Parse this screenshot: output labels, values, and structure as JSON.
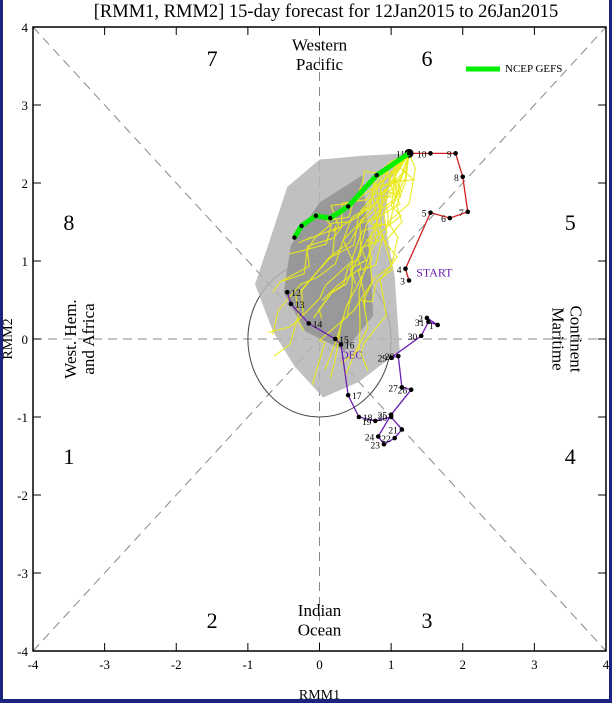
{
  "chart_data": {
    "type": "line",
    "title": "[RMM1, RMM2] 15-day forecast for 12Jan2015 to 26Jan2015",
    "xlabel": "RMM1",
    "ylabel": "RMM2",
    "xlim": [
      -4,
      4
    ],
    "ylim": [
      -4,
      4
    ],
    "xticks": [
      "-4",
      "-3",
      "-2",
      "-1",
      "0",
      "1",
      "2",
      "3",
      "4"
    ],
    "yticks": [
      "-4",
      "-3",
      "-2",
      "-1",
      "0",
      "1",
      "2",
      "3",
      "4"
    ],
    "grid": false,
    "legend": {
      "position": "top-right",
      "entries": [
        {
          "name": "NCEP GEFS",
          "color": "#00ee00"
        }
      ]
    },
    "phases": [
      "1",
      "2",
      "3",
      "4",
      "5",
      "6",
      "7",
      "8"
    ],
    "regions": {
      "top": [
        "Western",
        "Pacific"
      ],
      "bottom": [
        "Indian",
        "Ocean"
      ],
      "left": [
        "West. Hem.",
        "and Africa"
      ],
      "right": [
        "Maritime",
        "Continent"
      ]
    },
    "annotations": {
      "start": "START",
      "month": "DEC"
    },
    "series": [
      {
        "name": "observed-dec",
        "color": "#6a1fb0",
        "points": [
          {
            "label": "12",
            "x": -0.45,
            "y": 0.6
          },
          {
            "label": "13",
            "x": -0.4,
            "y": 0.45
          },
          {
            "label": "14",
            "x": -0.15,
            "y": 0.2
          },
          {
            "label": "15",
            "x": 0.22,
            "y": 0.0
          },
          {
            "label": "16",
            "x": 0.3,
            "y": -0.07
          },
          {
            "label": "17",
            "x": 0.4,
            "y": -0.72
          },
          {
            "label": "18",
            "x": 0.55,
            "y": -1.0
          },
          {
            "label": "19",
            "x": 0.78,
            "y": -1.05
          },
          {
            "label": "20",
            "x": 1.0,
            "y": -1.0
          },
          {
            "label": "21",
            "x": 1.15,
            "y": -1.16
          },
          {
            "label": "22",
            "x": 1.05,
            "y": -1.27
          },
          {
            "label": "23",
            "x": 0.9,
            "y": -1.35
          },
          {
            "label": "24",
            "x": 0.82,
            "y": -1.25
          },
          {
            "label": "25",
            "x": 1.0,
            "y": -0.97
          },
          {
            "label": "26",
            "x": 1.28,
            "y": -0.65
          },
          {
            "label": "27",
            "x": 1.15,
            "y": -0.62
          },
          {
            "label": "28",
            "x": 1.1,
            "y": -0.22
          },
          {
            "label": "29",
            "x": 1.0,
            "y": -0.24
          },
          {
            "label": "30",
            "x": 1.42,
            "y": 0.04
          },
          {
            "label": "31",
            "x": 1.52,
            "y": 0.22
          },
          {
            "label": "1",
            "x": 1.65,
            "y": 0.18
          },
          {
            "label": "2",
            "x": 1.5,
            "y": 0.27
          }
        ]
      },
      {
        "name": "observed-jan",
        "color": "#d02020",
        "points": [
          {
            "label": "3",
            "x": 1.25,
            "y": 0.75
          },
          {
            "label": "4",
            "x": 1.2,
            "y": 0.9
          },
          {
            "label": "5",
            "x": 1.55,
            "y": 1.62
          },
          {
            "label": "6",
            "x": 1.82,
            "y": 1.55
          },
          {
            "label": "7",
            "x": 2.07,
            "y": 1.63
          },
          {
            "label": "8",
            "x": 2.0,
            "y": 2.08
          },
          {
            "label": "9",
            "x": 1.9,
            "y": 2.38
          },
          {
            "label": "10",
            "x": 1.55,
            "y": 2.38
          },
          {
            "label": "11",
            "x": 1.25,
            "y": 2.38
          }
        ]
      },
      {
        "name": "NCEP GEFS",
        "color": "#00ee00",
        "points": [
          {
            "x": 1.25,
            "y": 2.38
          },
          {
            "x": 0.8,
            "y": 2.1
          },
          {
            "x": 0.4,
            "y": 1.7
          },
          {
            "x": 0.15,
            "y": 1.55
          },
          {
            "x": -0.05,
            "y": 1.58
          },
          {
            "x": -0.25,
            "y": 1.45
          },
          {
            "x": -0.35,
            "y": 1.3
          }
        ]
      }
    ]
  }
}
